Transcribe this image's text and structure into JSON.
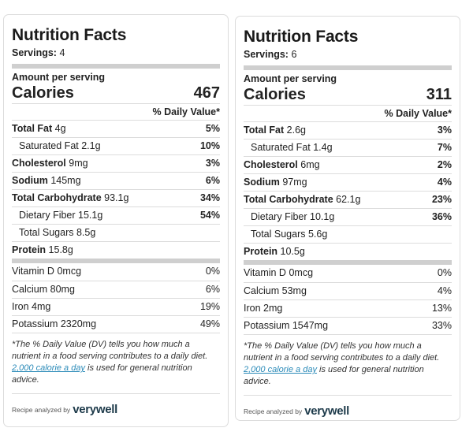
{
  "cards": [
    {
      "title": "Nutrition Facts",
      "servings_label": "Servings:",
      "servings": "4",
      "amount_label": "Amount per serving",
      "calories_label": "Calories",
      "calories": "467",
      "dv_header": "% Daily Value*",
      "nutrients": [
        {
          "name": "Total Fat",
          "amount": "4g",
          "pct": "5%",
          "bold": true,
          "indent": false
        },
        {
          "name": "Saturated Fat",
          "amount": "2.1g",
          "pct": "10%",
          "bold": false,
          "indent": true
        },
        {
          "name": "Cholesterol",
          "amount": "9mg",
          "pct": "3%",
          "bold": true,
          "indent": false
        },
        {
          "name": "Sodium",
          "amount": "145mg",
          "pct": "6%",
          "bold": true,
          "indent": false
        },
        {
          "name": "Total Carbohydrate",
          "amount": "93.1g",
          "pct": "34%",
          "bold": true,
          "indent": false
        },
        {
          "name": "Dietary Fiber",
          "amount": "15.1g",
          "pct": "54%",
          "bold": false,
          "indent": true
        },
        {
          "name": "Total Sugars",
          "amount": "8.5g",
          "pct": "",
          "bold": false,
          "indent": true
        },
        {
          "name": "Protein",
          "amount": "15.8g",
          "pct": "",
          "bold": true,
          "indent": false
        }
      ],
      "micros": [
        {
          "name": "Vitamin D",
          "amount": "0mcg",
          "pct": "0%"
        },
        {
          "name": "Calcium",
          "amount": "80mg",
          "pct": "6%"
        },
        {
          "name": "Iron",
          "amount": "4mg",
          "pct": "19%"
        },
        {
          "name": "Potassium",
          "amount": "2320mg",
          "pct": "49%"
        }
      ],
      "footnote_1": "*The % Daily Value (DV) tells you how much a nutrient in a food serving contributes to a daily diet.",
      "footnote_link": "2,000 calorie a day",
      "footnote_2": " is used for general nutrition advice.",
      "analyzed_by": "Recipe analyzed by",
      "brand": "verywell"
    },
    {
      "title": "Nutrition Facts",
      "servings_label": "Servings:",
      "servings": "6",
      "amount_label": "Amount per serving",
      "calories_label": "Calories",
      "calories": "311",
      "dv_header": "% Daily Value*",
      "nutrients": [
        {
          "name": "Total Fat",
          "amount": "2.6g",
          "pct": "3%",
          "bold": true,
          "indent": false
        },
        {
          "name": "Saturated Fat",
          "amount": "1.4g",
          "pct": "7%",
          "bold": false,
          "indent": true
        },
        {
          "name": "Cholesterol",
          "amount": "6mg",
          "pct": "2%",
          "bold": true,
          "indent": false
        },
        {
          "name": "Sodium",
          "amount": "97mg",
          "pct": "4%",
          "bold": true,
          "indent": false
        },
        {
          "name": "Total Carbohydrate",
          "amount": "62.1g",
          "pct": "23%",
          "bold": true,
          "indent": false
        },
        {
          "name": "Dietary Fiber",
          "amount": "10.1g",
          "pct": "36%",
          "bold": false,
          "indent": true
        },
        {
          "name": "Total Sugars",
          "amount": "5.6g",
          "pct": "",
          "bold": false,
          "indent": true
        },
        {
          "name": "Protein",
          "amount": "10.5g",
          "pct": "",
          "bold": true,
          "indent": false
        }
      ],
      "micros": [
        {
          "name": "Vitamin D",
          "amount": "0mcg",
          "pct": "0%"
        },
        {
          "name": "Calcium",
          "amount": "53mg",
          "pct": "4%"
        },
        {
          "name": "Iron",
          "amount": "2mg",
          "pct": "13%"
        },
        {
          "name": "Potassium",
          "amount": "1547mg",
          "pct": "33%"
        }
      ],
      "footnote_1": "*The % Daily Value (DV) tells you how much a nutrient in a food serving contributes to a daily diet.",
      "footnote_link": "2,000 calorie a day",
      "footnote_2": " is used for general nutrition advice.",
      "analyzed_by": "Recipe analyzed by",
      "brand": "verywell"
    }
  ]
}
